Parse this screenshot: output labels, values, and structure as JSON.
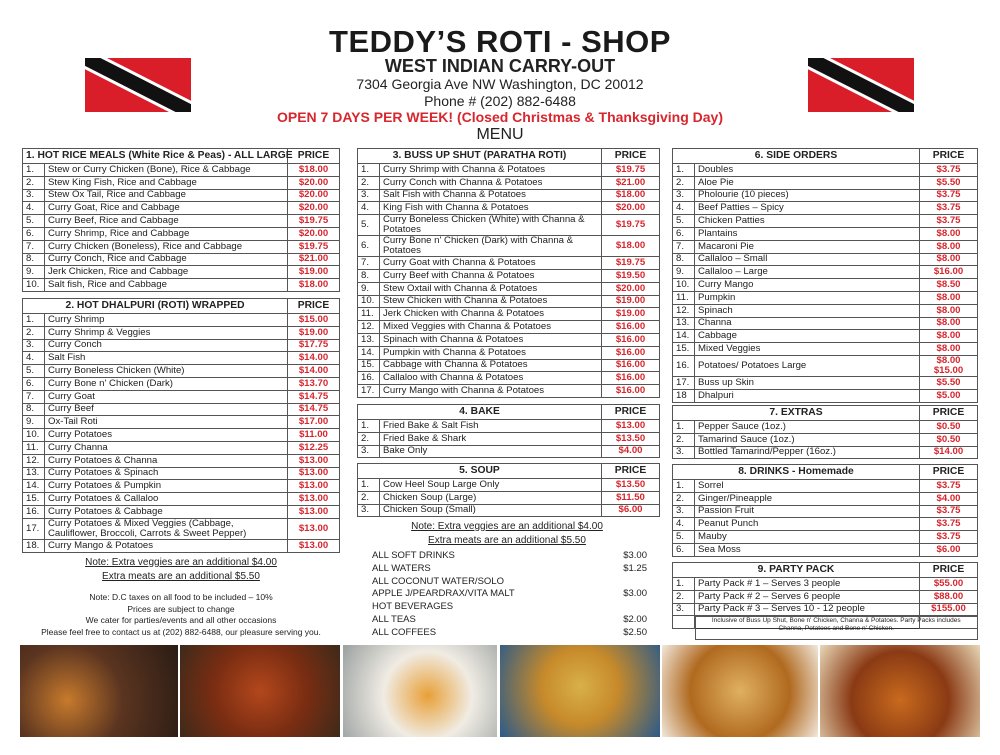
{
  "header": {
    "title": "TEDDY’S ROTI - SHOP",
    "subtitle": "WEST INDIAN CARRY-OUT",
    "address": "7304 Georgia Ave NW Washington, DC 20012",
    "phone": "Phone # (202) 882-6488",
    "hours": "OPEN 7 DAYS PER WEEK! (Closed Christmas & Thanksgiving Day)",
    "menu_label": "MENU"
  },
  "colors": {
    "accent_red": "#d7262d",
    "flag_red": "#d91e2a"
  },
  "sections": [
    {
      "title": "1. HOT RICE MEALS (White Rice & Peas) - ALL LARGE",
      "price_label": "PRICE",
      "items": [
        {
          "n": "1.",
          "name": "Stew or Curry Chicken (Bone), Rice & Cabbage",
          "price": "$18.00"
        },
        {
          "n": "2.",
          "name": "Stew King Fish, Rice and Cabbage",
          "price": "$20.00"
        },
        {
          "n": "3.",
          "name": "Stew Ox Tail, Rice and Cabbage",
          "price": "$20.00"
        },
        {
          "n": "4.",
          "name": "Curry Goat, Rice and Cabbage",
          "price": "$20.00"
        },
        {
          "n": "5.",
          "name": "Curry Beef, Rice and Cabbage",
          "price": "$19.75"
        },
        {
          "n": "6.",
          "name": "Curry Shrimp, Rice and Cabbage",
          "price": "$20.00"
        },
        {
          "n": "7.",
          "name": "Curry Chicken (Boneless), Rice and Cabbage",
          "price": "$19.75"
        },
        {
          "n": "8.",
          "name": "Curry Conch, Rice and Cabbage",
          "price": "$21.00"
        },
        {
          "n": "9.",
          "name": "Jerk Chicken, Rice and Cabbage",
          "price": "$19.00"
        },
        {
          "n": "10.",
          "name": "Salt fish, Rice and Cabbage",
          "price": "$18.00"
        }
      ]
    },
    {
      "title": "2. HOT DHALPURI (ROTI) WRAPPED",
      "price_label": "PRICE",
      "items": [
        {
          "n": "1.",
          "name": "Curry Shrimp",
          "price": "$15.00"
        },
        {
          "n": "2.",
          "name": "Curry Shrimp & Veggies",
          "price": "$19.00"
        },
        {
          "n": "3.",
          "name": "Curry Conch",
          "price": "$17.75"
        },
        {
          "n": "4.",
          "name": "Salt Fish",
          "price": "$14.00"
        },
        {
          "n": "5.",
          "name": "Curry Boneless Chicken (White)",
          "price": "$14.00"
        },
        {
          "n": "6.",
          "name": "Curry Bone n' Chicken (Dark)",
          "price": "$13.70"
        },
        {
          "n": "7.",
          "name": "Curry Goat",
          "price": "$14.75"
        },
        {
          "n": "8.",
          "name": "Curry Beef",
          "price": "$14.75"
        },
        {
          "n": "9.",
          "name": "Ox-Tail Roti",
          "price": "$17.00"
        },
        {
          "n": "10.",
          "name": "Curry Potatoes",
          "price": "$11.00"
        },
        {
          "n": "11.",
          "name": "Curry Channa",
          "price": "$12.25"
        },
        {
          "n": "12.",
          "name": "Curry Potatoes & Channa",
          "price": "$13.00"
        },
        {
          "n": "13.",
          "name": "Curry Potatoes & Spinach",
          "price": "$13.00"
        },
        {
          "n": "14.",
          "name": "Curry Potatoes & Pumpkin",
          "price": "$13.00"
        },
        {
          "n": "15.",
          "name": "Curry Potatoes & Callaloo",
          "price": "$13.00"
        },
        {
          "n": "16.",
          "name": "Curry Potatoes & Cabbage",
          "price": "$13.00"
        },
        {
          "n": "17.",
          "name": "Curry Potatoes & Mixed Veggies (Cabbage, Cauliflower, Broccoli, Carrots & Sweet Pepper)",
          "price": "$13.00",
          "two": true
        },
        {
          "n": "18.",
          "name": "Curry Mango & Potatoes",
          "price": "$13.00"
        }
      ]
    },
    {
      "title": "3. BUSS UP SHUT (PARATHA ROTI)",
      "price_label": "PRICE",
      "items": [
        {
          "n": "1.",
          "name": "Curry Shrimp with Channa & Potatoes",
          "price": "$19.75"
        },
        {
          "n": "2.",
          "name": "Curry Conch with Channa & Potatoes",
          "price": "$21.00"
        },
        {
          "n": "3.",
          "name": "Salt Fish with Channa & Potatoes",
          "price": "$18.00"
        },
        {
          "n": "4.",
          "name": "King Fish with Channa & Potatoes",
          "price": "$20.00"
        },
        {
          "n": "5.",
          "name": "Curry Boneless Chicken (White) with Channa & Potatoes",
          "price": "$19.75",
          "two": true
        },
        {
          "n": "6.",
          "name": "Curry Bone n' Chicken (Dark) with Channa & Potatoes",
          "price": "$18.00",
          "two": true
        },
        {
          "n": "7.",
          "name": "Curry Goat with Channa & Potatoes",
          "price": "$19.75"
        },
        {
          "n": "8.",
          "name": "Curry Beef with Channa & Potatoes",
          "price": "$19.50"
        },
        {
          "n": "9.",
          "name": "Stew Oxtail with Channa & Potatoes",
          "price": "$20.00"
        },
        {
          "n": "10.",
          "name": "Stew Chicken with Channa & Potatoes",
          "price": "$19.00"
        },
        {
          "n": "11.",
          "name": "Jerk Chicken with Channa & Potatoes",
          "price": "$19.00"
        },
        {
          "n": "12.",
          "name": "Mixed Veggies with Channa & Potatoes",
          "price": "$16.00"
        },
        {
          "n": "13.",
          "name": "Spinach with Channa & Potatoes",
          "price": "$16.00"
        },
        {
          "n": "14.",
          "name": "Pumpkin with Channa & Potatoes",
          "price": "$16.00"
        },
        {
          "n": "15.",
          "name": "Cabbage with Channa & Potatoes",
          "price": "$16.00"
        },
        {
          "n": "16.",
          "name": "Callaloo with Channa & Potatoes",
          "price": "$16.00"
        },
        {
          "n": "17.",
          "name": "Curry Mango with Channa & Potatoes",
          "price": "$16.00"
        }
      ]
    },
    {
      "title": "4. BAKE",
      "price_label": "PRICE",
      "items": [
        {
          "n": "1.",
          "name": "Fried Bake & Salt Fish",
          "price": "$13.00"
        },
        {
          "n": "2.",
          "name": "Fried Bake & Shark",
          "price": "$13.50"
        },
        {
          "n": "3.",
          "name": "Bake Only",
          "price": "$4.00"
        }
      ]
    },
    {
      "title": "5. SOUP",
      "price_label": "PRICE",
      "items": [
        {
          "n": "1.",
          "name": "Cow Heel Soup Large Only",
          "price": "$13.50"
        },
        {
          "n": "2.",
          "name": "Chicken Soup (Large)",
          "price": "$11.50"
        },
        {
          "n": "3.",
          "name": "Chicken Soup (Small)",
          "price": "$6.00"
        }
      ]
    },
    {
      "title": "6. SIDE ORDERS",
      "price_label": "PRICE",
      "items": [
        {
          "n": "1.",
          "name": "Doubles",
          "price": "$3.75"
        },
        {
          "n": "2.",
          "name": "Aloe Pie",
          "price": "$5.50"
        },
        {
          "n": "3.",
          "name": "Pholourie (10 pieces)",
          "price": "$3.75"
        },
        {
          "n": "4.",
          "name": "Beef Patties – Spicy",
          "price": "$3.75"
        },
        {
          "n": "5.",
          "name": "Chicken Patties",
          "price": "$3.75"
        },
        {
          "n": "6.",
          "name": "Plantains",
          "price": "$8.00"
        },
        {
          "n": "7.",
          "name": "Macaroni Pie",
          "price": "$8.00"
        },
        {
          "n": "8.",
          "name": "Callaloo – Small",
          "price": "$8.00"
        },
        {
          "n": "9.",
          "name": "Callaloo – Large",
          "price": "$16.00"
        },
        {
          "n": "10.",
          "name": "Curry Mango",
          "price": "$8.50"
        },
        {
          "n": "11.",
          "name": "Pumpkin",
          "price": "$8.00"
        },
        {
          "n": "12.",
          "name": "Spinach",
          "price": "$8.00"
        },
        {
          "n": "13.",
          "name": "Channa",
          "price": "$8.00"
        },
        {
          "n": "14.",
          "name": "Cabbage",
          "price": "$8.00"
        },
        {
          "n": "15.",
          "name": "Mixed Veggies",
          "price": "$8.00"
        },
        {
          "n": "16.",
          "name": "Potatoes/ Potatoes Large",
          "price": "$8.00 $15.00",
          "two": true
        },
        {
          "n": "17.",
          "name": "Buss up Skin",
          "price": "$5.50"
        },
        {
          "n": "18",
          "name": "Dhalpuri",
          "price": "$5.00"
        }
      ]
    },
    {
      "title": "7. EXTRAS",
      "price_label": "PRICE",
      "items": [
        {
          "n": "1.",
          "name": "Pepper Sauce (1oz.)",
          "price": "$0.50"
        },
        {
          "n": "2.",
          "name": "Tamarind Sauce (1oz.)",
          "price": "$0.50"
        },
        {
          "n": "3.",
          "name": "Bottled Tamarind/Pepper (16oz.)",
          "price": "$14.00"
        }
      ]
    },
    {
      "title": "8. DRINKS - Homemade",
      "price_label": "PRICE",
      "items": [
        {
          "n": "1.",
          "name": "Sorrel",
          "price": "$3.75"
        },
        {
          "n": "2.",
          "name": "Ginger/Pineapple",
          "price": "$4.00"
        },
        {
          "n": "3.",
          "name": "Passion Fruit",
          "price": "$3.75"
        },
        {
          "n": "4.",
          "name": "Peanut Punch",
          "price": "$3.75"
        },
        {
          "n": "5.",
          "name": "Mauby",
          "price": "$3.75"
        },
        {
          "n": "6.",
          "name": "Sea Moss",
          "price": "$6.00"
        }
      ]
    },
    {
      "title": "9. PARTY PACK",
      "price_label": "PRICE",
      "items": [
        {
          "n": "1.",
          "name": "Party Pack # 1 – Serves 3 people",
          "price": "$55.00"
        },
        {
          "n": "2.",
          "name": "Party Pack # 2 – Serves 6 people",
          "price": "$88.00"
        },
        {
          "n": "3.",
          "name": "Party Pack # 3 – Serves 10 - 12 people",
          "price": "$155.00"
        },
        {
          "n": "",
          "name": "Inclusive of Buss Up Shut, Bone n' Chicken, Channa & Potatoes. Party Packs includes Channa, Potatoes and Bone n' Chicken.",
          "price": "",
          "note": true
        }
      ]
    }
  ],
  "notes": {
    "extra_veggies": "Note: Extra veggies are an additional $4.00",
    "extra_meats": "Extra meats are an additional $5.50",
    "tax": "Note: D.C taxes on all food to be included – 10%",
    "prices_change": "Prices are subject to change",
    "cater": "We cater for parties/events and all other occasions",
    "contact": "Please feel free to contact us at (202) 882-6488, our pleasure serving you."
  },
  "beverages": [
    {
      "name": "ALL SOFT DRINKS",
      "price": "$3.00"
    },
    {
      "name": "ALL WATERS",
      "price": "$1.25"
    },
    {
      "name": "ALL COCONUT WATER/SOLO",
      "price": ""
    },
    {
      "name": "APPLE J/PEARDRAX/VITA MALT",
      "price": "$3.00"
    },
    {
      "name": "HOT BEVERAGES",
      "price": ""
    },
    {
      "name": "ALL TEAS",
      "price": "$2.00"
    },
    {
      "name": "ALL COFFEES",
      "price": "$2.50"
    }
  ],
  "photos": [
    "tea-and-coffee",
    "jerk-chicken",
    "curry-with-rice",
    "roti-with-curry",
    "paratha",
    "curry-dishes"
  ]
}
